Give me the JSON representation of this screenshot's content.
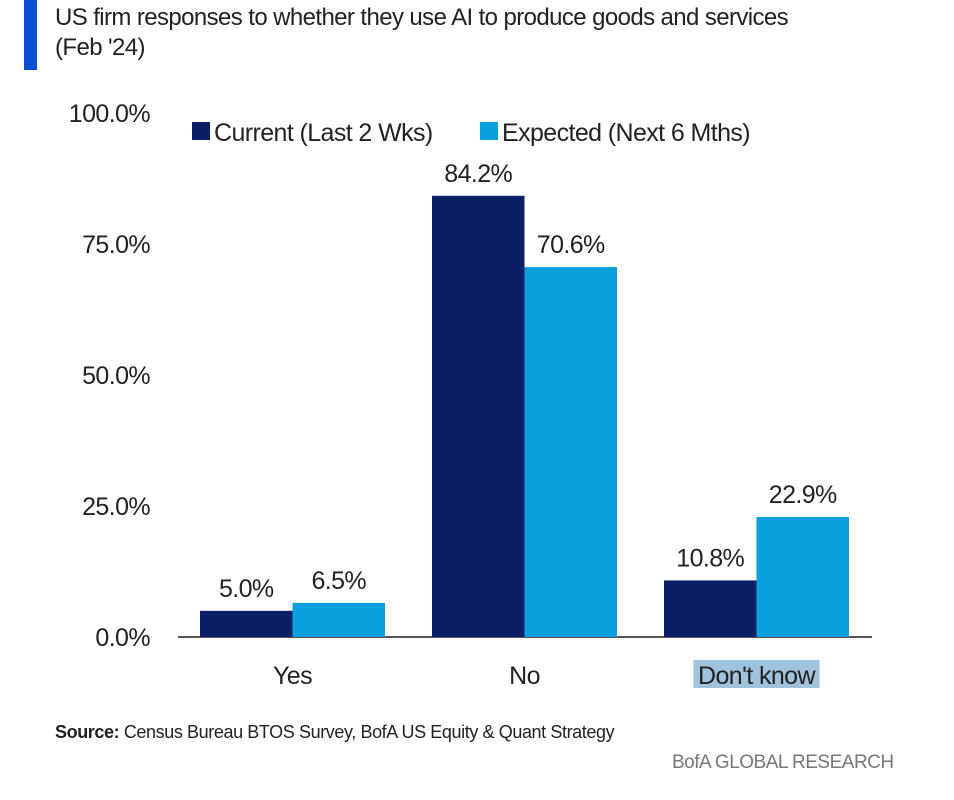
{
  "title_line1": "US firm responses to whether they use AI to produce goods and services",
  "title_line2": "(Feb '24)",
  "source_label": "Source:",
  "source_text": " Census Bureau BTOS Survey, BofA US Equity & Quant Strategy",
  "brand": "BofA GLOBAL RESEARCH",
  "chart_data": {
    "type": "bar",
    "categories": [
      "Yes",
      "No",
      "Don't know"
    ],
    "series": [
      {
        "name": "Current (Last 2 Wks)",
        "values": [
          5.0,
          84.2,
          10.8
        ],
        "color": "#0a1f66"
      },
      {
        "name": "Expected (Next 6 Mths)",
        "values": [
          6.5,
          70.6,
          22.9
        ],
        "color": "#0aa0e0"
      }
    ],
    "yticks": [
      "0.0%",
      "25.0%",
      "50.0%",
      "75.0%",
      "100.0%"
    ],
    "ylim": [
      0,
      100
    ],
    "legend": "top",
    "grid": false,
    "highlighted_category": "Don't know",
    "highlight_color": "#9fc3dd"
  }
}
